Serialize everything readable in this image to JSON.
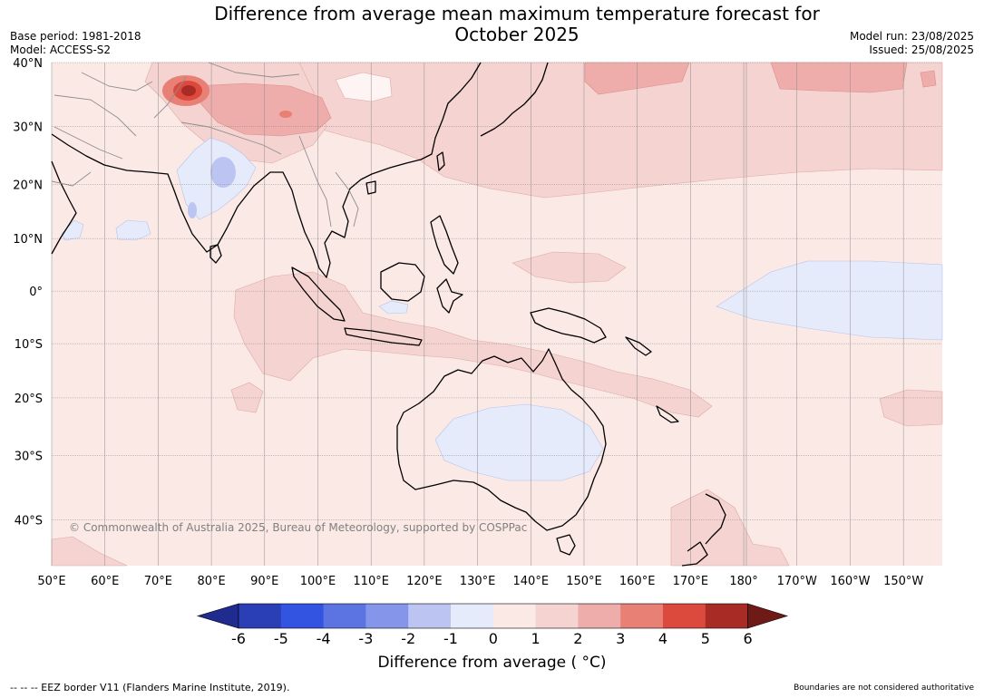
{
  "title_line1": "Difference from average mean maximum temperature forecast for",
  "title_line2": "October 2025",
  "base_period": "Base period: 1981-2018",
  "model": "Model: ACCESS-S2",
  "model_run": "Model run: 23/08/2025",
  "issued": "Issued: 25/08/2025",
  "copyright": "© Commonwealth of Australia 2025, Bureau of Meteorology, supported by COSPPac",
  "lat_labels": [
    "40°N",
    "30°N",
    "20°N",
    "10°N",
    "0°",
    "10°S",
    "20°S",
    "30°S",
    "40°S"
  ],
  "lon_labels": [
    "50°E",
    "60°E",
    "70°E",
    "80°E",
    "90°E",
    "100°E",
    "110°E",
    "120°E",
    "130°E",
    "140°E",
    "150°E",
    "160°E",
    "170°E",
    "180°",
    "170°W",
    "160°W",
    "150°W"
  ],
  "colorbar": {
    "ticks": [
      "-6",
      "-5",
      "-4",
      "-3",
      "-2",
      "-1",
      "0",
      "1",
      "2",
      "3",
      "4",
      "5",
      "6"
    ],
    "colors": [
      "#1f2b8e",
      "#2a3fb5",
      "#3254e0",
      "#5b74e2",
      "#8596ea",
      "#bcc5f2",
      "#e6ebfb",
      "#fbe9e6",
      "#f5d3d0",
      "#eeadaa",
      "#e88076",
      "#dc4a3d",
      "#a82b25",
      "#6f1a17"
    ],
    "label": "Difference from average ( °C)"
  },
  "footer_left": "--  --  -- EEZ border V11 (Flanders Marine Institute, 2019).",
  "footer_right": "Boundaries are not considered authoritative"
}
